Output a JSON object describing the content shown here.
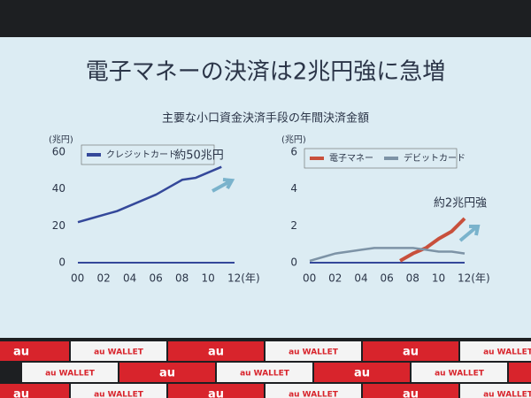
{
  "slide": {
    "title": "電子マネーの決済は2兆円強に急増",
    "subtitle": "主要な小口資金決済手段の年間決済金額",
    "banner": [
      "au",
      "au WALLET"
    ]
  },
  "chart_data": [
    {
      "type": "line",
      "y_unit": "(兆円)",
      "annotation": "約50兆円",
      "x": [
        0,
        1,
        2,
        3,
        4,
        5,
        6,
        7,
        8,
        9,
        10,
        11
      ],
      "xlim": [
        0,
        12
      ],
      "xticks": [
        {
          "value": 0,
          "label": "00"
        },
        {
          "value": 2,
          "label": "02"
        },
        {
          "value": 4,
          "label": "04"
        },
        {
          "value": 6,
          "label": "06"
        },
        {
          "value": 8,
          "label": "08"
        },
        {
          "value": 10,
          "label": "10"
        },
        {
          "value": 12,
          "label": "12(年)"
        }
      ],
      "ylim": [
        0,
        60
      ],
      "yticks": [
        0,
        20,
        40,
        60
      ],
      "grid": false,
      "series": [
        {
          "name": "クレジットカード",
          "color": "#34489a",
          "values": [
            22,
            24,
            26,
            28,
            31,
            34,
            37,
            41,
            45,
            46,
            49,
            52
          ]
        }
      ]
    },
    {
      "type": "line",
      "y_unit": "(兆円)",
      "annotation": "約2兆円強",
      "x": [
        0,
        1,
        2,
        3,
        4,
        5,
        6,
        7,
        8,
        9,
        10,
        11,
        12
      ],
      "xlim": [
        0,
        12
      ],
      "xticks": [
        {
          "value": 0,
          "label": "00"
        },
        {
          "value": 2,
          "label": "02"
        },
        {
          "value": 4,
          "label": "04"
        },
        {
          "value": 6,
          "label": "06"
        },
        {
          "value": 8,
          "label": "08"
        },
        {
          "value": 10,
          "label": "10"
        },
        {
          "value": 12,
          "label": "12(年)"
        }
      ],
      "ylim": [
        0,
        6
      ],
      "yticks": [
        0,
        2,
        4,
        6
      ],
      "grid": false,
      "series": [
        {
          "name": "電子マネー",
          "color": "#c8503c",
          "values": [
            null,
            null,
            null,
            null,
            null,
            null,
            null,
            0.1,
            0.5,
            0.8,
            1.3,
            1.7,
            2.4
          ]
        },
        {
          "name": "デビットカード",
          "color": "#7d93a6",
          "values": [
            0.1,
            0.3,
            0.5,
            0.6,
            0.7,
            0.8,
            0.8,
            0.8,
            0.8,
            0.7,
            0.6,
            0.6,
            0.5
          ]
        }
      ]
    }
  ]
}
